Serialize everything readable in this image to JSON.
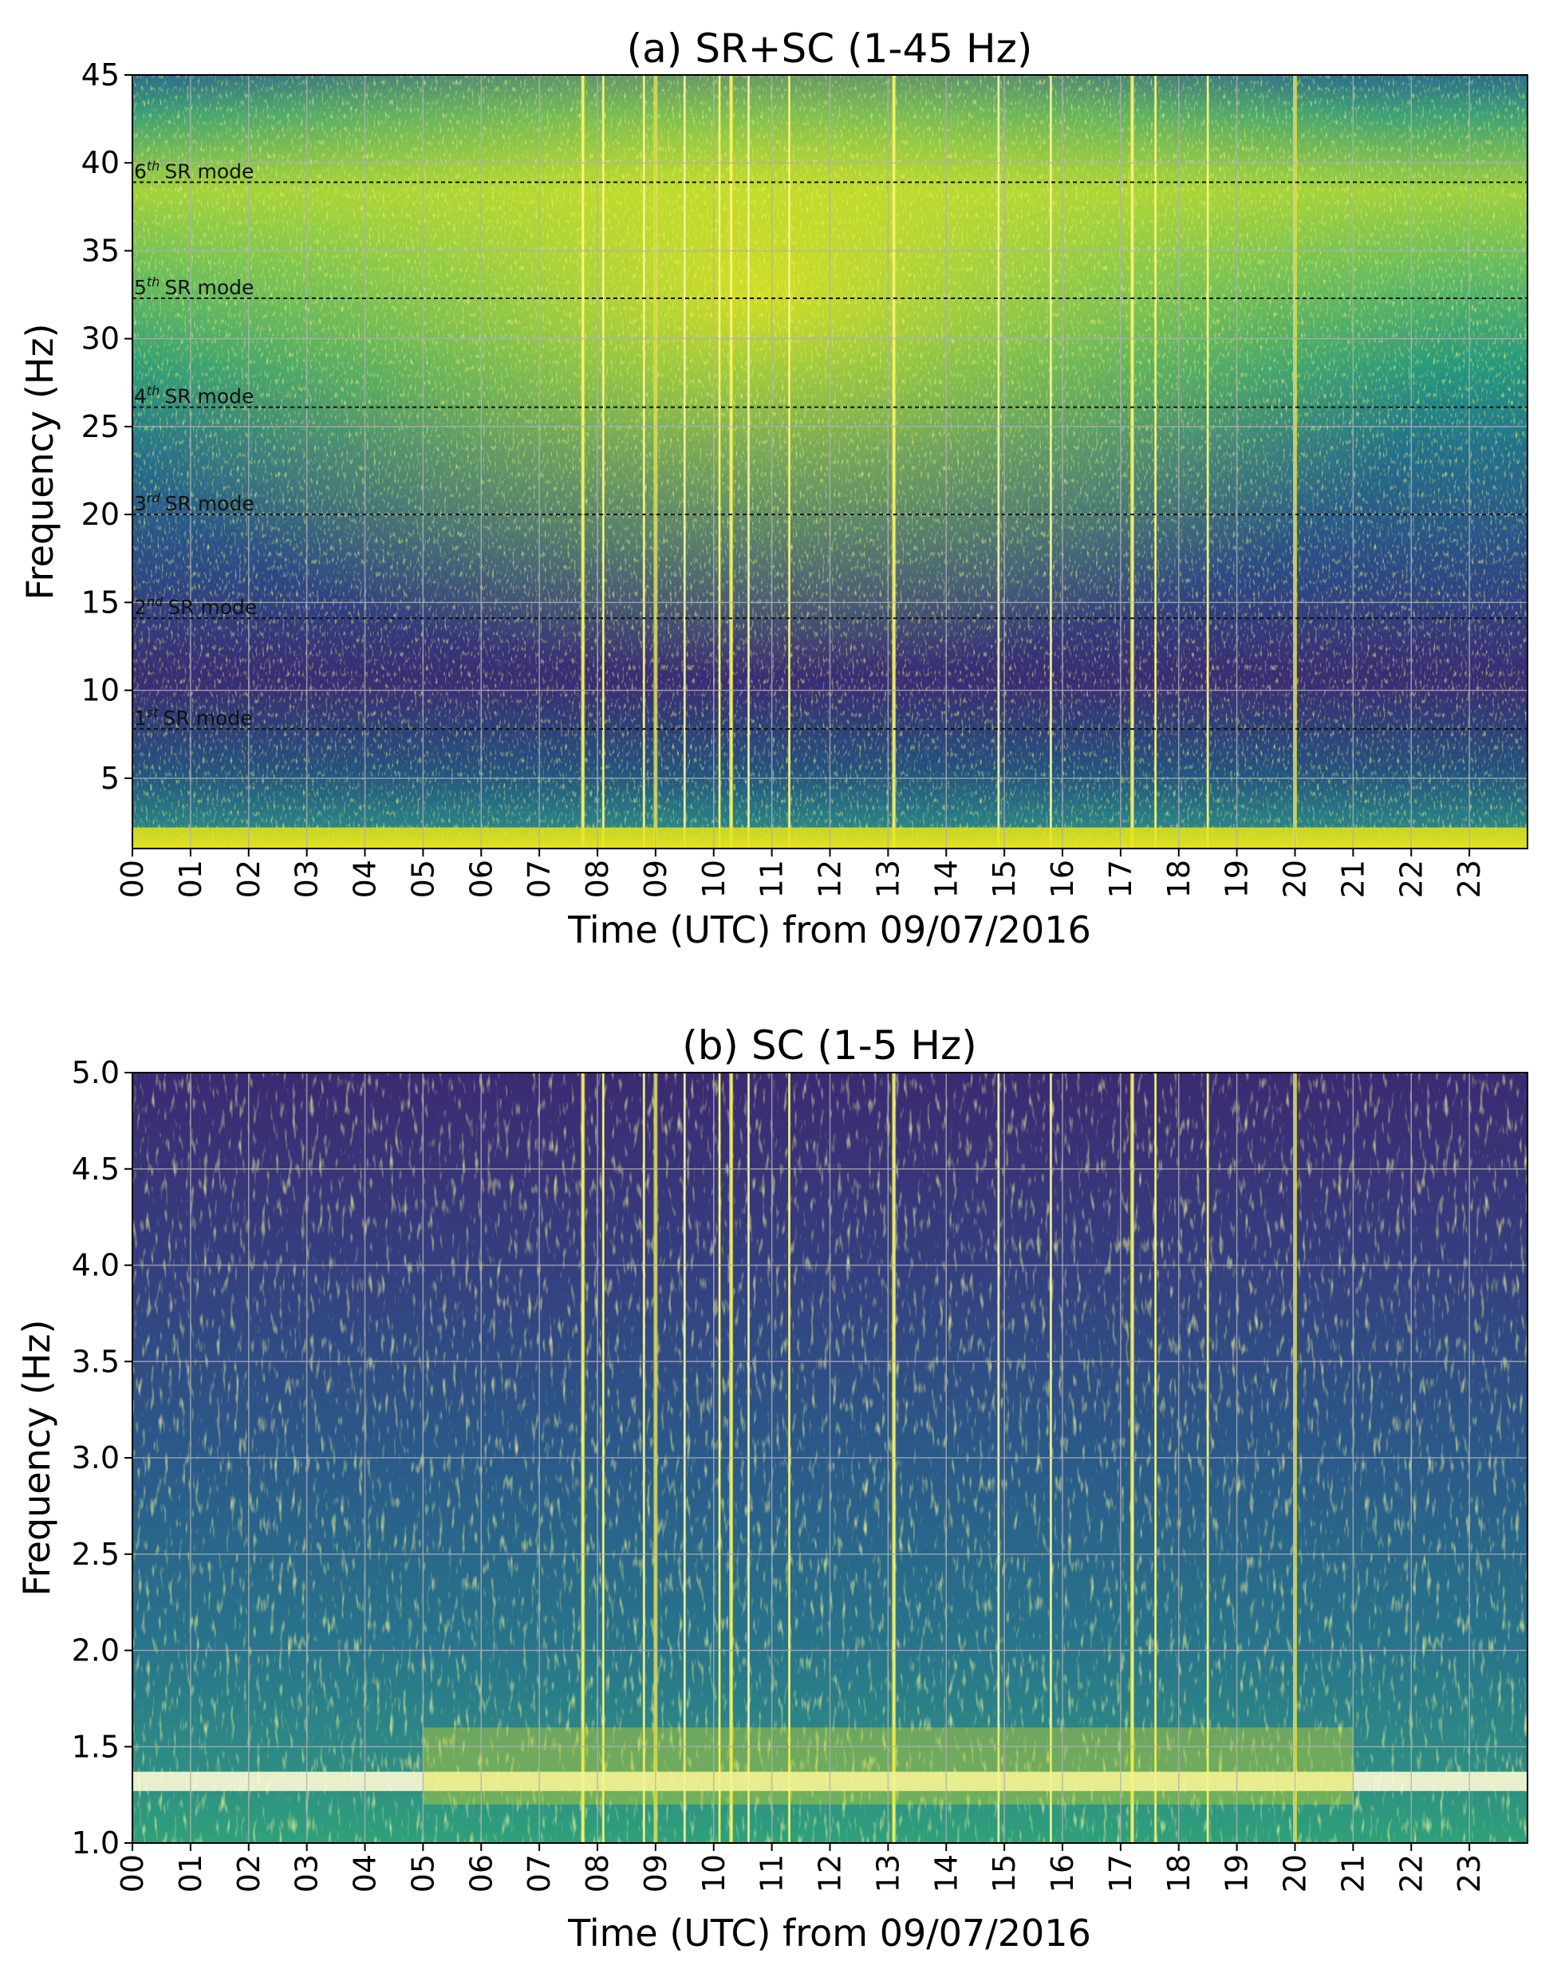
{
  "chart_data": [
    {
      "type": "heatmap",
      "title": "(a) SR+SC (1-45 Hz)",
      "xlabel": "Time (UTC) from 09/07/2016",
      "ylabel": "Frequency (Hz)",
      "xlim": [
        0,
        24
      ],
      "ylim": [
        1,
        45
      ],
      "x_ticks": [
        "00",
        "01",
        "02",
        "03",
        "04",
        "05",
        "06",
        "07",
        "08",
        "09",
        "10",
        "11",
        "12",
        "13",
        "14",
        "15",
        "16",
        "17",
        "18",
        "19",
        "20",
        "21",
        "22",
        "23"
      ],
      "y_ticks": [
        {
          "value": 5,
          "label": "5"
        },
        {
          "value": 10,
          "label": "10"
        },
        {
          "value": 15,
          "label": "15"
        },
        {
          "value": 20,
          "label": "20"
        },
        {
          "value": 25,
          "label": "25"
        },
        {
          "value": 30,
          "label": "30"
        },
        {
          "value": 35,
          "label": "35"
        },
        {
          "value": 40,
          "label": "40"
        },
        {
          "value": 45,
          "label": "45"
        }
      ],
      "grid": true,
      "colormap": "viridis",
      "mode_lines": [
        {
          "ordinal": "1",
          "sup": "st",
          "text": "SR mode",
          "frequency": 7.8
        },
        {
          "ordinal": "2",
          "sup": "nd",
          "text": "SR mode",
          "frequency": 14.1
        },
        {
          "ordinal": "3",
          "sup": "rd",
          "text": "SR mode",
          "frequency": 20.0
        },
        {
          "ordinal": "4",
          "sup": "th",
          "text": "SR mode",
          "frequency": 26.1
        },
        {
          "ordinal": "5",
          "sup": "th",
          "text": "SR mode",
          "frequency": 32.3
        },
        {
          "ordinal": "6",
          "sup": "th",
          "text": "SR mode",
          "frequency": 38.9
        }
      ]
    },
    {
      "type": "heatmap",
      "title": "(b) SC (1-5 Hz)",
      "xlabel": "Time (UTC) from 09/07/2016",
      "ylabel": "Frequency (Hz)",
      "xlim": [
        0,
        24
      ],
      "ylim": [
        1.0,
        5.0
      ],
      "x_ticks": [
        "00",
        "01",
        "02",
        "03",
        "04",
        "05",
        "06",
        "07",
        "08",
        "09",
        "10",
        "11",
        "12",
        "13",
        "14",
        "15",
        "16",
        "17",
        "18",
        "19",
        "20",
        "21",
        "22",
        "23"
      ],
      "y_ticks": [
        {
          "value": 1.0,
          "label": "1.0"
        },
        {
          "value": 1.5,
          "label": "1.5"
        },
        {
          "value": 2.0,
          "label": "2.0"
        },
        {
          "value": 2.5,
          "label": "2.5"
        },
        {
          "value": 3.0,
          "label": "3.0"
        },
        {
          "value": 3.5,
          "label": "3.5"
        },
        {
          "value": 4.0,
          "label": "4.0"
        },
        {
          "value": 4.5,
          "label": "4.5"
        },
        {
          "value": 5.0,
          "label": "5.0"
        }
      ],
      "grid": true,
      "colormap": "viridis",
      "band_frequency": 1.32
    }
  ],
  "colors": {
    "viridis_dark": "#3b1f6b",
    "viridis_mid": "#23708b",
    "viridis_green": "#2fb47c",
    "viridis_yellow": "#e8e419",
    "saturated": "#fbfbd4"
  },
  "bursts": [
    7.75,
    8.1,
    8.8,
    9.0,
    9.5,
    10.1,
    10.3,
    10.6,
    11.3,
    13.1,
    14.9,
    15.8,
    17.2,
    17.6,
    18.5,
    20.0
  ]
}
